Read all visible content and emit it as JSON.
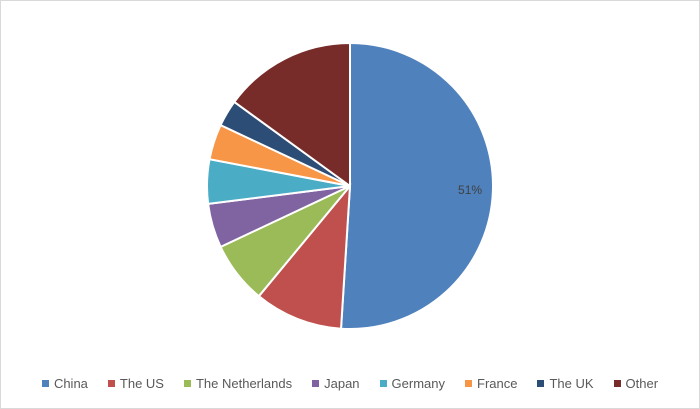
{
  "chart_data": {
    "type": "pie",
    "categories": [
      "China",
      "The US",
      "The Netherlands",
      "Japan",
      "Germany",
      "France",
      "The UK",
      "Other"
    ],
    "values": [
      51,
      10,
      7,
      5,
      5,
      4,
      3,
      15
    ],
    "colors": [
      "#4f81bd",
      "#c0504d",
      "#9bbb59",
      "#8064a2",
      "#4bacc6",
      "#f79646",
      "#2c4d75",
      "#772c2a"
    ],
    "data_labels": [
      "51%",
      "",
      "",
      "",
      "",
      "",
      "",
      ""
    ],
    "title": "",
    "legend_position": "bottom"
  }
}
